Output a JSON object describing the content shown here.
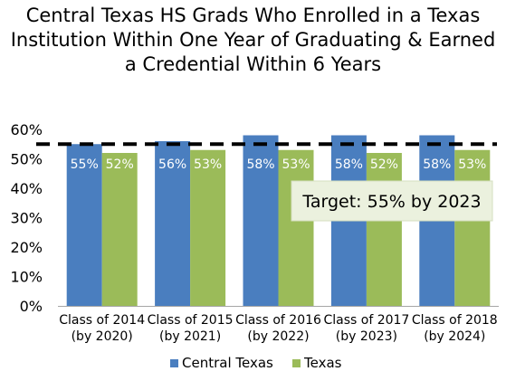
{
  "chart_data": {
    "type": "bar",
    "title": "Central Texas HS Grads Who Enrolled in a Texas Institution Within One Year of Graduating & Earned a Credential Within 6 Years",
    "categories": [
      [
        "Class of 2014",
        "(by 2020)"
      ],
      [
        "Class of 2015",
        "(by 2021)"
      ],
      [
        "Class of 2016",
        "(by 2022)"
      ],
      [
        "Class of 2017",
        "(by 2023)"
      ],
      [
        "Class of 2018",
        "(by 2024)"
      ]
    ],
    "series": [
      {
        "name": "Central Texas",
        "values": [
          55,
          56,
          58,
          58,
          58
        ],
        "color": "#4a7ebf"
      },
      {
        "name": "Texas",
        "values": [
          52,
          53,
          53,
          52,
          53
        ],
        "color": "#9bbb59"
      }
    ],
    "data_labels": {
      "Central Texas": [
        "55%",
        "56%",
        "58%",
        "58%",
        "58%"
      ],
      "Texas": [
        "52%",
        "53%",
        "53%",
        "52%",
        "53%"
      ]
    },
    "y_ticks": [
      "0%",
      "10%",
      "20%",
      "30%",
      "40%",
      "50%",
      "60%"
    ],
    "ylim": [
      0,
      60
    ],
    "grid": false,
    "target_line": {
      "value": 55,
      "style": "dashed",
      "color": "#000000"
    },
    "annotation": "Target: 55% by 2023",
    "legend_position": "bottom",
    "xlabel": "",
    "ylabel": ""
  }
}
